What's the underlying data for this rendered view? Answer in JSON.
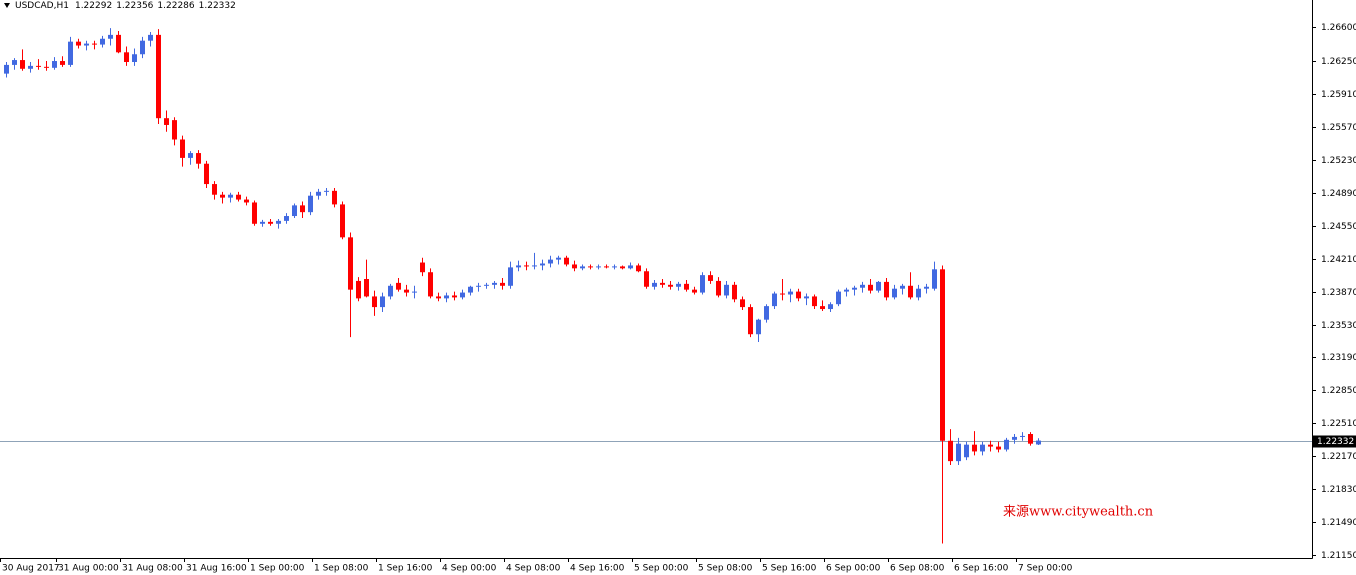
{
  "chart_data": {
    "type": "candlestick",
    "title": "USDCAD,H1",
    "annotation": "来源www.citywealth.cn",
    "up_color": "#4169e1",
    "down_color": "#ff0000",
    "price_line_color": "#8fa3b8",
    "ylim": [
      1.2112,
      1.2688
    ],
    "yticks": [
      {
        "value": 1.266,
        "label": "1.26600"
      },
      {
        "value": 1.2625,
        "label": "1.26250"
      },
      {
        "value": 1.2591,
        "label": "1.25910"
      },
      {
        "value": 1.2557,
        "label": "1.25570"
      },
      {
        "value": 1.2523,
        "label": "1.25230"
      },
      {
        "value": 1.2489,
        "label": "1.24890"
      },
      {
        "value": 1.2455,
        "label": "1.24550"
      },
      {
        "value": 1.2421,
        "label": "1.24210"
      },
      {
        "value": 1.2387,
        "label": "1.23870"
      },
      {
        "value": 1.2353,
        "label": "1.23530"
      },
      {
        "value": 1.2319,
        "label": "1.23190"
      },
      {
        "value": 1.2285,
        "label": "1.22850"
      },
      {
        "value": 1.2251,
        "label": "1.22510"
      },
      {
        "value": 1.2217,
        "label": "1.22170"
      },
      {
        "value": 1.2183,
        "label": "1.21830"
      },
      {
        "value": 1.2149,
        "label": "1.21490"
      },
      {
        "value": 1.2115,
        "label": "1.21150"
      }
    ],
    "categories": [
      "30 Aug 2017",
      null,
      null,
      null,
      null,
      null,
      null,
      "31 Aug 00:00",
      null,
      null,
      null,
      null,
      null,
      null,
      null,
      "31 Aug 08:00",
      null,
      null,
      null,
      null,
      null,
      null,
      null,
      "31 Aug 16:00",
      null,
      null,
      null,
      null,
      null,
      null,
      null,
      "1 Sep 00:00",
      null,
      null,
      null,
      null,
      null,
      null,
      null,
      "1 Sep 08:00",
      null,
      null,
      null,
      null,
      null,
      null,
      null,
      "1 Sep 16:00",
      null,
      null,
      null,
      null,
      null,
      null,
      null,
      "4 Sep 00:00",
      null,
      null,
      null,
      null,
      null,
      null,
      null,
      "4 Sep 08:00",
      null,
      null,
      null,
      null,
      null,
      null,
      null,
      "4 Sep 16:00",
      null,
      null,
      null,
      null,
      null,
      null,
      null,
      "5 Sep 00:00",
      null,
      null,
      null,
      null,
      null,
      null,
      null,
      "5 Sep 08:00",
      null,
      null,
      null,
      null,
      null,
      null,
      null,
      "5 Sep 16:00",
      null,
      null,
      null,
      null,
      null,
      null,
      null,
      "6 Sep 00:00",
      null,
      null,
      null,
      null,
      null,
      null,
      null,
      "6 Sep 08:00",
      null,
      null,
      null,
      null,
      null,
      null,
      null,
      "6 Sep 16:00",
      null,
      null,
      null,
      null,
      null,
      null,
      null,
      "7 Sep 00:00",
      null,
      null
    ],
    "ohlc": [
      [
        1.2612,
        1.2624,
        1.2608,
        1.2621
      ],
      [
        1.2621,
        1.2628,
        1.2616,
        1.2626
      ],
      [
        1.2626,
        1.2637,
        1.2615,
        1.2617
      ],
      [
        1.2617,
        1.2624,
        1.2613,
        1.262
      ],
      [
        1.262,
        1.2627,
        1.2616,
        1.2619
      ],
      [
        1.2619,
        1.2625,
        1.2615,
        1.2618
      ],
      [
        1.2618,
        1.2629,
        1.2616,
        1.2625
      ],
      [
        1.2625,
        1.263,
        1.2619,
        1.2621
      ],
      [
        1.2621,
        1.265,
        1.2619,
        1.2645
      ],
      [
        1.2645,
        1.2648,
        1.2638,
        1.2641
      ],
      [
        1.2641,
        1.2646,
        1.2636,
        1.2643
      ],
      [
        1.2643,
        1.2646,
        1.2637,
        1.2642
      ],
      [
        1.2642,
        1.2651,
        1.2639,
        1.2648
      ],
      [
        1.2648,
        1.2659,
        1.2641,
        1.2652
      ],
      [
        1.2652,
        1.2656,
        1.2633,
        1.2634
      ],
      [
        1.2634,
        1.264,
        1.262,
        1.2624
      ],
      [
        1.2624,
        1.2638,
        1.262,
        1.2632
      ],
      [
        1.2632,
        1.265,
        1.2628,
        1.2646
      ],
      [
        1.2646,
        1.2655,
        1.264,
        1.2652
      ],
      [
        1.2652,
        1.2658,
        1.256,
        1.2566
      ],
      [
        1.2566,
        1.2574,
        1.2552,
        1.2559
      ],
      [
        1.2564,
        1.2567,
        1.2538,
        1.2544
      ],
      [
        1.2544,
        1.2548,
        1.2516,
        1.2525
      ],
      [
        1.2525,
        1.2532,
        1.2518,
        1.253
      ],
      [
        1.253,
        1.2533,
        1.2514,
        1.2519
      ],
      [
        1.2519,
        1.2522,
        1.2494,
        1.2498
      ],
      [
        1.2498,
        1.2501,
        1.2482,
        1.2487
      ],
      [
        1.2487,
        1.249,
        1.2478,
        1.2484
      ],
      [
        1.2484,
        1.2489,
        1.2479,
        1.2487
      ],
      [
        1.2487,
        1.249,
        1.248,
        1.2482
      ],
      [
        1.2482,
        1.2485,
        1.2476,
        1.2479
      ],
      [
        1.2479,
        1.2481,
        1.2455,
        1.2457
      ],
      [
        1.2457,
        1.2461,
        1.2454,
        1.2459
      ],
      [
        1.2459,
        1.2462,
        1.2455,
        1.2457
      ],
      [
        1.2457,
        1.2462,
        1.2452,
        1.246
      ],
      [
        1.246,
        1.2468,
        1.2457,
        1.2465
      ],
      [
        1.2465,
        1.2478,
        1.2463,
        1.2476
      ],
      [
        1.2476,
        1.248,
        1.2463,
        1.2469
      ],
      [
        1.2469,
        1.249,
        1.2466,
        1.2486
      ],
      [
        1.2486,
        1.2493,
        1.2482,
        1.249
      ],
      [
        1.249,
        1.2494,
        1.2486,
        1.2491
      ],
      [
        1.2491,
        1.2494,
        1.2474,
        1.2477
      ],
      [
        1.2477,
        1.248,
        1.2441,
        1.2443
      ],
      [
        1.2443,
        1.2448,
        1.234,
        1.2389
      ],
      [
        1.2398,
        1.2402,
        1.2377,
        1.238
      ],
      [
        1.24,
        1.242,
        1.2381,
        1.2382
      ],
      [
        1.2382,
        1.2388,
        1.2362,
        1.2371
      ],
      [
        1.2371,
        1.2386,
        1.2366,
        1.2382
      ],
      [
        1.2382,
        1.2395,
        1.2379,
        1.2393
      ],
      [
        1.2396,
        1.2401,
        1.2387,
        1.2389
      ],
      [
        1.2389,
        1.2394,
        1.2382,
        1.2386
      ],
      [
        1.2386,
        1.2393,
        1.238,
        1.2387
      ],
      [
        1.2417,
        1.2422,
        1.2403,
        1.2407
      ],
      [
        1.2407,
        1.2411,
        1.238,
        1.2382
      ],
      [
        1.2382,
        1.2386,
        1.2377,
        1.238
      ],
      [
        1.238,
        1.2386,
        1.2376,
        1.2383
      ],
      [
        1.2383,
        1.2387,
        1.2378,
        1.2381
      ],
      [
        1.2381,
        1.2389,
        1.2379,
        1.2386
      ],
      [
        1.2386,
        1.2393,
        1.2383,
        1.2392
      ],
      [
        1.2392,
        1.2396,
        1.2387,
        1.2393
      ],
      [
        1.2393,
        1.2396,
        1.239,
        1.2394
      ],
      [
        1.2394,
        1.2398,
        1.239,
        1.2396
      ],
      [
        1.2396,
        1.2401,
        1.2389,
        1.2393
      ],
      [
        1.2393,
        1.2418,
        1.239,
        1.2412
      ],
      [
        1.2412,
        1.2419,
        1.2408,
        1.2414
      ],
      [
        1.2414,
        1.2418,
        1.2409,
        1.2413
      ],
      [
        1.2413,
        1.2427,
        1.241,
        1.2414
      ],
      [
        1.2414,
        1.242,
        1.2409,
        1.2416
      ],
      [
        1.2416,
        1.2424,
        1.2412,
        1.242
      ],
      [
        1.242,
        1.2424,
        1.2415,
        1.2422
      ],
      [
        1.2422,
        1.2424,
        1.2413,
        1.2415
      ],
      [
        1.2415,
        1.2419,
        1.2408,
        1.2411
      ],
      [
        1.2411,
        1.2415,
        1.2409,
        1.2413
      ],
      [
        1.2413,
        1.2415,
        1.241,
        1.2412
      ],
      [
        1.2412,
        1.2415,
        1.241,
        1.2413
      ],
      [
        1.2413,
        1.2415,
        1.2411,
        1.2412
      ],
      [
        1.2412,
        1.2415,
        1.241,
        1.2413
      ],
      [
        1.2413,
        1.2414,
        1.241,
        1.2411
      ],
      [
        1.2411,
        1.2417,
        1.241,
        1.2414
      ],
      [
        1.2414,
        1.2416,
        1.2407,
        1.2408
      ],
      [
        1.2408,
        1.2411,
        1.239,
        1.2392
      ],
      [
        1.2392,
        1.2399,
        1.2389,
        1.2396
      ],
      [
        1.2396,
        1.24,
        1.2391,
        1.2394
      ],
      [
        1.2394,
        1.2398,
        1.2389,
        1.2392
      ],
      [
        1.2392,
        1.2397,
        1.2388,
        1.2395
      ],
      [
        1.2395,
        1.2399,
        1.2387,
        1.2389
      ],
      [
        1.2389,
        1.2392,
        1.2384,
        1.2386
      ],
      [
        1.2386,
        1.2407,
        1.2384,
        1.2404
      ],
      [
        1.2404,
        1.2408,
        1.2395,
        1.2398
      ],
      [
        1.2398,
        1.2402,
        1.2381,
        1.2383
      ],
      [
        1.2383,
        1.2398,
        1.238,
        1.2394
      ],
      [
        1.2394,
        1.2397,
        1.2376,
        1.2379
      ],
      [
        1.2379,
        1.2382,
        1.2368,
        1.2371
      ],
      [
        1.2371,
        1.2374,
        1.234,
        1.2343
      ],
      [
        1.2343,
        1.2359,
        1.2335,
        1.2358
      ],
      [
        1.2358,
        1.2374,
        1.2355,
        1.2372
      ],
      [
        1.2372,
        1.2387,
        1.2369,
        1.2385
      ],
      [
        1.2385,
        1.24,
        1.2378,
        1.2384
      ],
      [
        1.2384,
        1.239,
        1.2376,
        1.2387
      ],
      [
        1.2387,
        1.239,
        1.2377,
        1.238
      ],
      [
        1.238,
        1.2385,
        1.2373,
        1.2382
      ],
      [
        1.2382,
        1.2384,
        1.2369,
        1.2372
      ],
      [
        1.2372,
        1.2378,
        1.2367,
        1.2369
      ],
      [
        1.2369,
        1.2376,
        1.2366,
        1.2374
      ],
      [
        1.2374,
        1.2389,
        1.2372,
        1.2387
      ],
      [
        1.2387,
        1.2391,
        1.2382,
        1.2389
      ],
      [
        1.2389,
        1.2393,
        1.2383,
        1.2391
      ],
      [
        1.2391,
        1.2397,
        1.2386,
        1.2394
      ],
      [
        1.2394,
        1.24,
        1.2385,
        1.2388
      ],
      [
        1.2388,
        1.2398,
        1.2386,
        1.2397
      ],
      [
        1.2397,
        1.2401,
        1.2378,
        1.2381
      ],
      [
        1.2381,
        1.2394,
        1.2379,
        1.239
      ],
      [
        1.239,
        1.2395,
        1.2384,
        1.2393
      ],
      [
        1.2393,
        1.2407,
        1.2379,
        1.2381
      ],
      [
        1.2381,
        1.2394,
        1.2378,
        1.239
      ],
      [
        1.239,
        1.2395,
        1.2385,
        1.2392
      ],
      [
        1.239,
        1.2418,
        1.2388,
        1.241
      ],
      [
        1.241,
        1.2414,
        1.2127,
        1.2233
      ],
      [
        1.2233,
        1.2245,
        1.2208,
        1.2212
      ],
      [
        1.2212,
        1.2236,
        1.2208,
        1.223
      ],
      [
        1.2216,
        1.2232,
        1.2213,
        1.2229
      ],
      [
        1.2229,
        1.2243,
        1.2218,
        1.2222
      ],
      [
        1.2222,
        1.2232,
        1.2218,
        1.2229
      ],
      [
        1.2229,
        1.2233,
        1.2222,
        1.2227
      ],
      [
        1.2227,
        1.2232,
        1.2221,
        1.2224
      ],
      [
        1.2224,
        1.2236,
        1.2222,
        1.2234
      ],
      [
        1.2234,
        1.224,
        1.223,
        1.2237
      ],
      [
        1.2237,
        1.2242,
        1.2233,
        1.2238
      ],
      [
        1.224,
        1.2242,
        1.2228,
        1.223
      ],
      [
        1.22292,
        1.22356,
        1.22286,
        1.22332
      ]
    ]
  }
}
